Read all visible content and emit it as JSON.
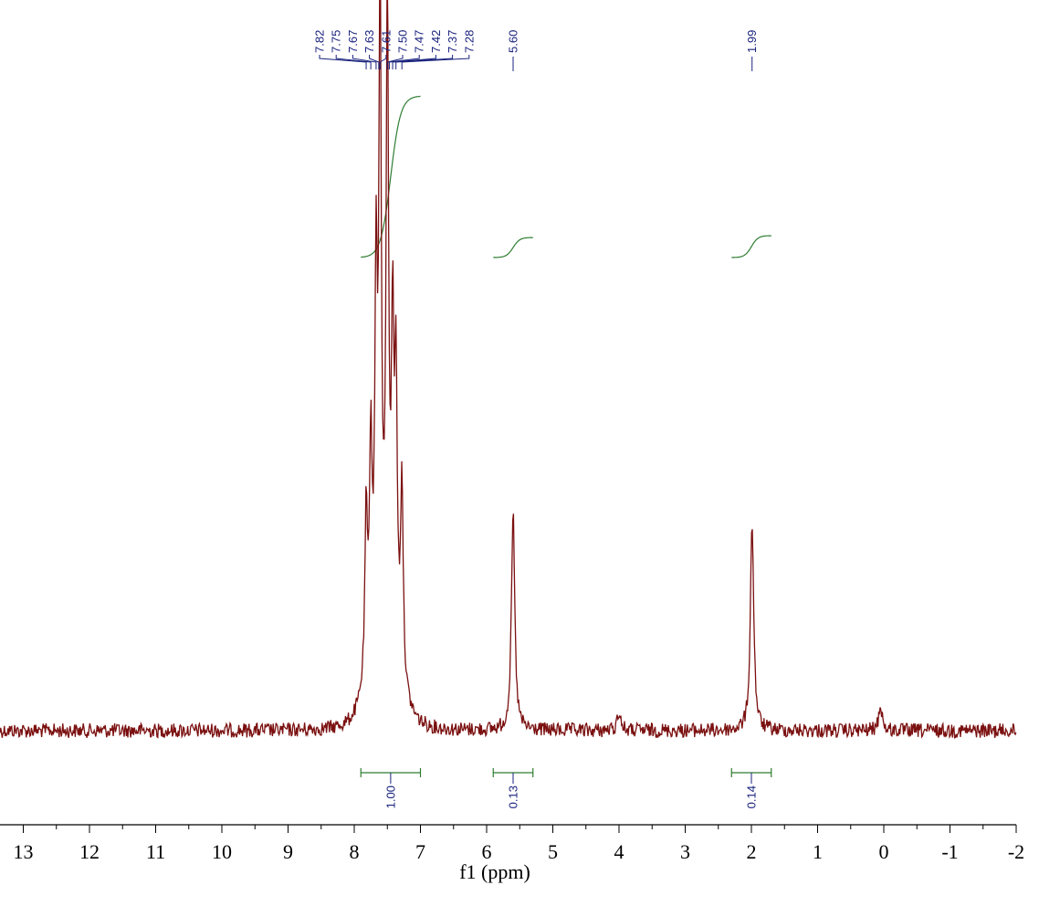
{
  "chart_data": {
    "type": "line",
    "title": "",
    "xlabel": "f1 (ppm)",
    "ylabel": "",
    "xlim": [
      13.9,
      -2.0
    ],
    "x_reversed": true,
    "grid": false,
    "ticks": [
      "13",
      "12",
      "11",
      "10",
      "9",
      "8",
      "7",
      "6",
      "5",
      "4",
      "3",
      "2",
      "1",
      "0",
      "-1",
      "-2"
    ],
    "peak_labels": [
      "7.82",
      "7.75",
      "7.67",
      "7.63",
      "7.61",
      "7.50",
      "7.47",
      "7.42",
      "7.37",
      "7.28",
      "5.60",
      "1.99"
    ],
    "integrals": [
      {
        "from": 7.9,
        "to": 7.0,
        "value": "1.00"
      },
      {
        "from": 5.9,
        "to": 5.3,
        "value": "0.13"
      },
      {
        "from": 2.3,
        "to": 1.7,
        "value": "0.14"
      }
    ],
    "series": [
      {
        "peaks": [
          {
            "ppm": 7.82,
            "height": 0.25
          },
          {
            "ppm": 7.75,
            "height": 0.32
          },
          {
            "ppm": 7.67,
            "height": 0.53
          },
          {
            "ppm": 7.61,
            "height": 0.97
          },
          {
            "ppm": 7.5,
            "height": 0.96
          },
          {
            "ppm": 7.42,
            "height": 0.45
          },
          {
            "ppm": 7.37,
            "height": 0.4
          },
          {
            "ppm": 7.28,
            "height": 0.3
          },
          {
            "ppm": 5.6,
            "height": 0.33
          },
          {
            "ppm": 1.99,
            "height": 0.32
          },
          {
            "ppm": 4.0,
            "height": 0.03
          },
          {
            "ppm": 0.05,
            "height": 0.04
          }
        ]
      }
    ],
    "colors": {
      "spectrum": "#7b1010",
      "integral": "#2e7d32",
      "labels": "#1a237e"
    }
  }
}
